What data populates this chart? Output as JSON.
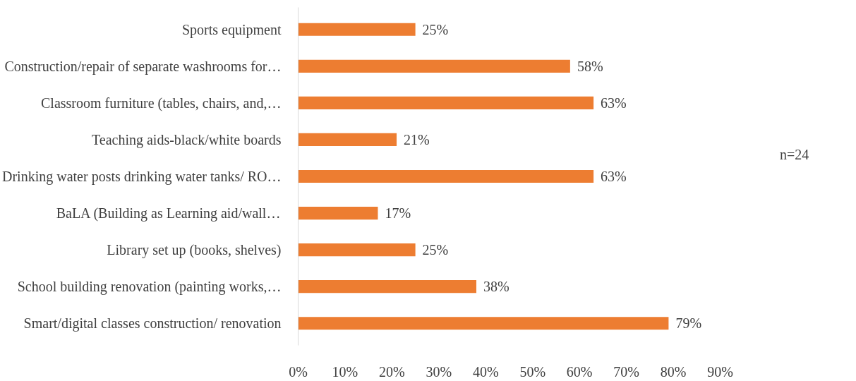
{
  "chart_data": {
    "type": "bar",
    "orientation": "horizontal",
    "categories": [
      "Sports equipment",
      "Construction/repair of separate washrooms for…",
      "Classroom furniture (tables, chairs, and,…",
      "Teaching aids-black/white boards",
      "Drinking water posts drinking water tanks/ RO…",
      "BaLA (Building as Learning aid/wall…",
      "Library set up (books, shelves)",
      "School building renovation (painting works,…",
      "Smart/digital classes construction/ renovation"
    ],
    "values": [
      25,
      58,
      63,
      21,
      63,
      17,
      25,
      38,
      79
    ],
    "value_labels": [
      "25%",
      "58%",
      "63%",
      "21%",
      "63%",
      "17%",
      "25%",
      "38%",
      "79%"
    ],
    "color": "#ed7d31",
    "xlim": [
      0,
      90
    ],
    "xticks": [
      {
        "value": 0,
        "label": "0%"
      },
      {
        "value": 10,
        "label": "10%"
      },
      {
        "value": 20,
        "label": "20%"
      },
      {
        "value": 30,
        "label": "30%"
      },
      {
        "value": 40,
        "label": "40%"
      },
      {
        "value": 50,
        "label": "50%"
      },
      {
        "value": 60,
        "label": "60%"
      },
      {
        "value": 70,
        "label": "70%"
      },
      {
        "value": 80,
        "label": "80%"
      },
      {
        "value": 90,
        "label": "90%"
      }
    ],
    "annotations": [
      "n=24"
    ],
    "grid": false
  }
}
